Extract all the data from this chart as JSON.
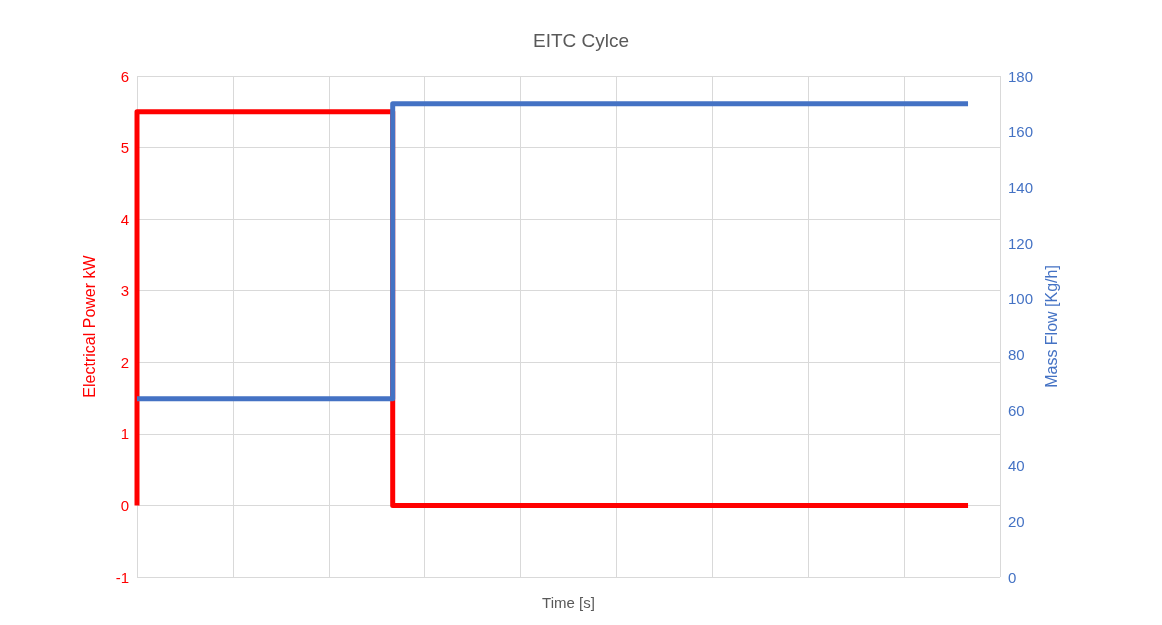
{
  "chart_data": {
    "type": "step",
    "title": "EITC Cylce",
    "xlabel": "Time [s]",
    "ylabel": "Electrical Power kW",
    "y2label": "Mass Flow [Kg/h]",
    "categories": [
      null,
      null,
      null,
      null,
      null,
      null,
      null,
      null,
      null,
      null,
      null,
      null,
      null,
      null,
      null,
      null,
      null,
      null,
      null,
      null,
      null,
      null,
      null,
      null,
      null,
      null,
      null,
      null
    ],
    "series": [
      {
        "color": "#ff0000",
        "values": [
          0,
          5.5,
          5.5,
          5.5,
          5.5,
          5.5,
          5.5,
          5.5,
          5.5,
          0,
          0,
          0,
          0,
          0,
          0,
          0,
          0,
          0,
          0,
          0,
          0,
          0,
          0,
          0,
          0,
          0,
          0,
          null
        ]
      },
      {
        "color": "#4472c4",
        "axis": "y2",
        "values": [
          64,
          64,
          64,
          64,
          64,
          64,
          64,
          64,
          64,
          170,
          170,
          170,
          170,
          170,
          170,
          170,
          170,
          170,
          170,
          170,
          170,
          170,
          170,
          170,
          170,
          170,
          170,
          null
        ]
      }
    ],
    "ylim": [
      -1,
      6
    ],
    "yticks": [
      -1,
      0,
      1,
      2,
      3,
      4,
      5,
      6
    ],
    "y2lim": [
      0,
      180
    ],
    "y2ticks": [
      0,
      20,
      40,
      60,
      80,
      100,
      120,
      140,
      160,
      180
    ],
    "grid": true
  }
}
